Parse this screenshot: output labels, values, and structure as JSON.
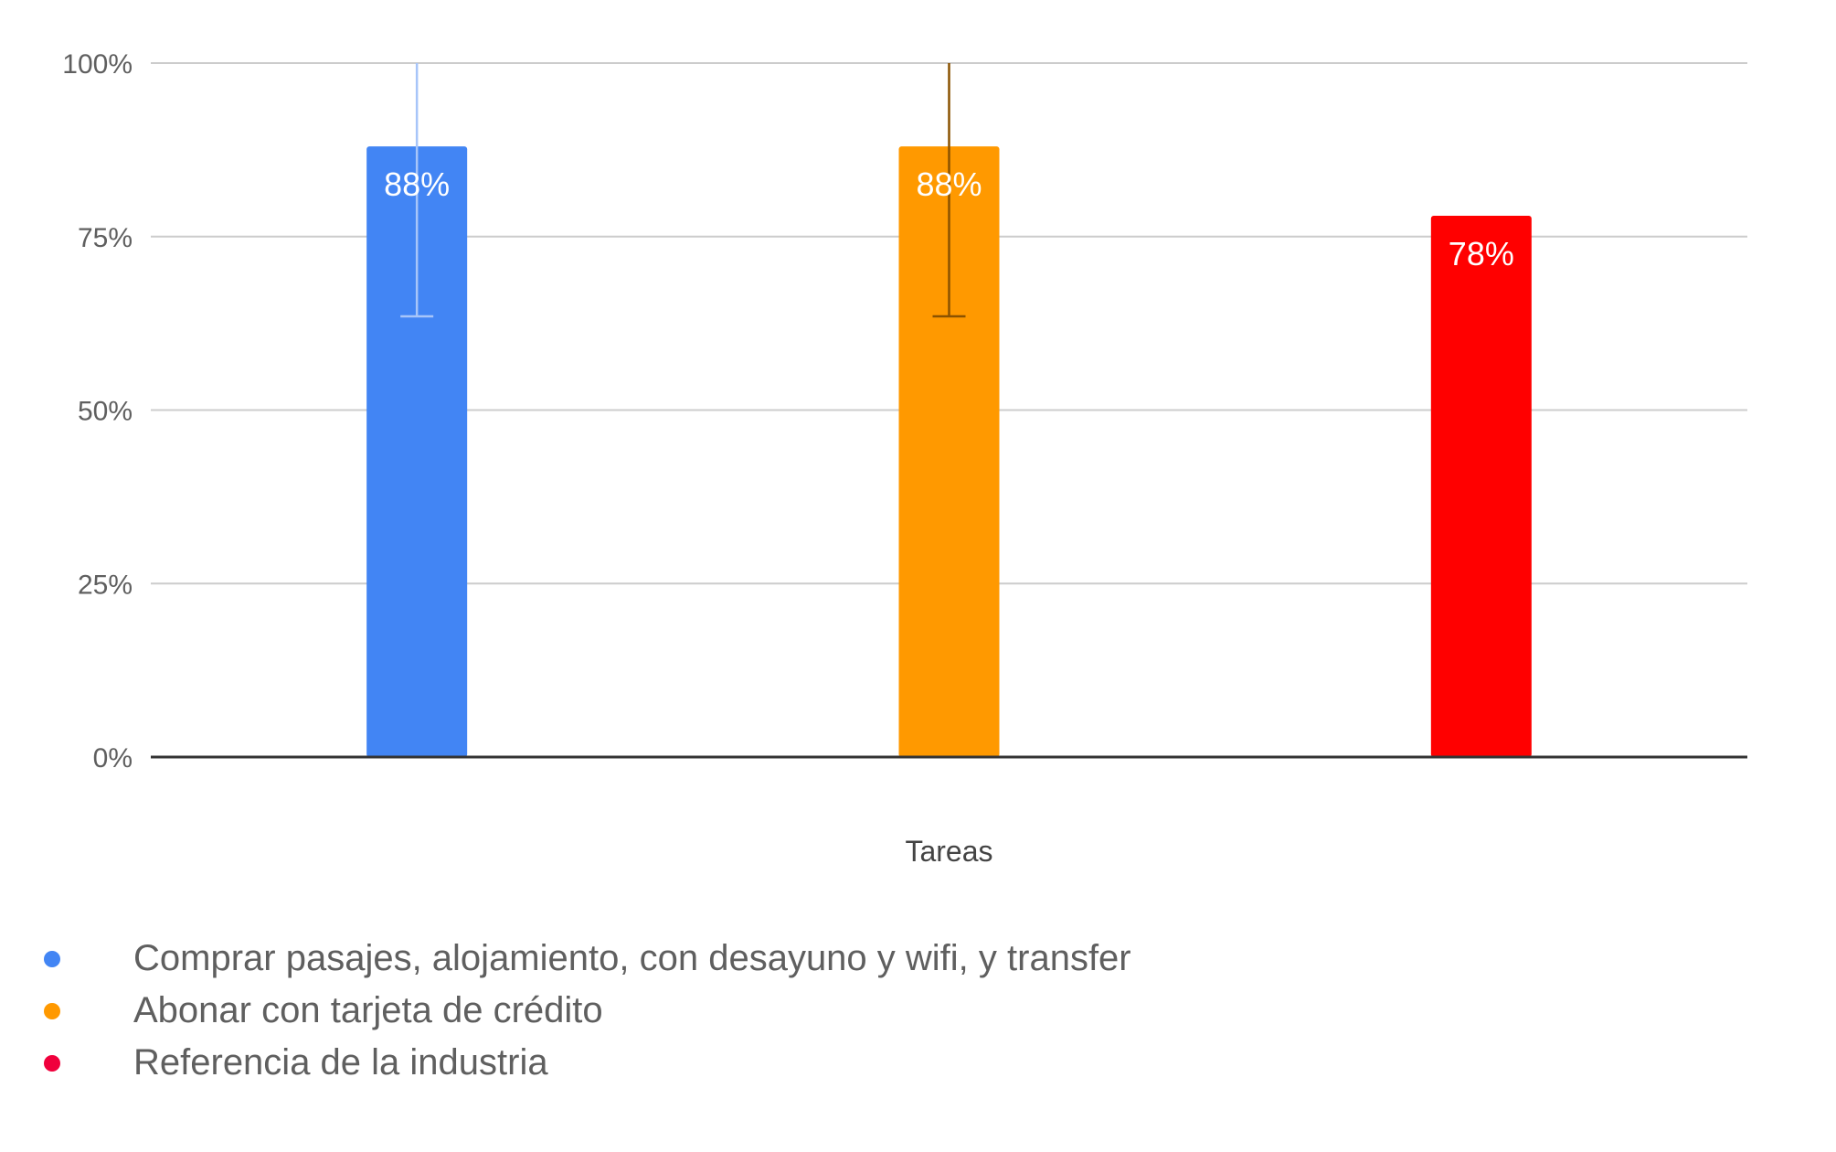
{
  "chart_data": {
    "type": "bar",
    "categories": [
      "Comprar pasajes, alojamiento, con desayuno y wifi, y transfer",
      "Abonar con tarjeta de crédito",
      "Referencia de la industria"
    ],
    "values": [
      88,
      88,
      78
    ],
    "data_labels": [
      "88%",
      "88%",
      "78%"
    ],
    "error_bars": [
      {
        "low": 63.5,
        "high": 100,
        "color": "#a7c5f9"
      },
      {
        "low": 63.5,
        "high": 100,
        "color": "#8a5200"
      },
      null
    ],
    "colors": [
      "#4285f4",
      "#ff9900",
      "#ff0000"
    ],
    "xlabel": "Tareas",
    "ylabel": "",
    "ylim": [
      0,
      100
    ],
    "yticks": [
      0,
      25,
      50,
      75,
      100
    ],
    "ytick_labels": [
      "0%",
      "25%",
      "50%",
      "75%",
      "100%"
    ],
    "grid": true,
    "legend": {
      "placement": "bottom-left",
      "entries": [
        {
          "label": "Comprar pasajes, alojamiento, con desayuno y wifi, y transfer",
          "color": "#4285f4"
        },
        {
          "label": "Abonar con tarjeta de crédito",
          "color": "#ff9900"
        },
        {
          "label": "Referencia de la industria",
          "color": "#f0003c"
        }
      ]
    }
  }
}
